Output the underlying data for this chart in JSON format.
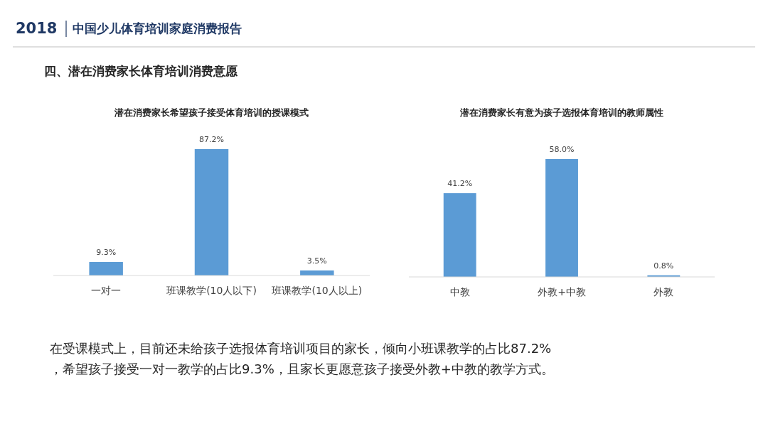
{
  "chart_data": [
    {
      "type": "other",
      "title": "中国少儿体育培训家庭消费报告",
      "subtitle": "四、潜在消费家长体育培训消费意愿",
      "annotations": [
        "2018",
        "在受课模式上，目前还未给孩子选报体育培训项目的家长，倾向小班课教学的占比87.2%，希望孩子接受一对一教学的占比9.3%，且家长更愿意孩子接受外教+中教的教学方式。"
      ]
    },
    {
      "type": "bar",
      "title": "潜在消费家长希望孩子接受体育培训的授课模式",
      "categories": [
        "一对一",
        "班课教学(10人以下)",
        "班课教学(10人以上)"
      ],
      "values": [
        9.3,
        87.2,
        3.5
      ],
      "value_labels": [
        "9.3%",
        "87.2%",
        "3.5%"
      ],
      "color": "#5b9bd5"
    },
    {
      "type": "bar",
      "title": "潜在消费家长有意为孩子选报体育培训的教师属性",
      "categories": [
        "中教",
        "外教+中教",
        "外教"
      ],
      "values": [
        41.2,
        58.0,
        0.8
      ],
      "value_labels": [
        "41.2%",
        "58.0%",
        "0.8%"
      ],
      "color": "#5b9bd5"
    }
  ]
}
